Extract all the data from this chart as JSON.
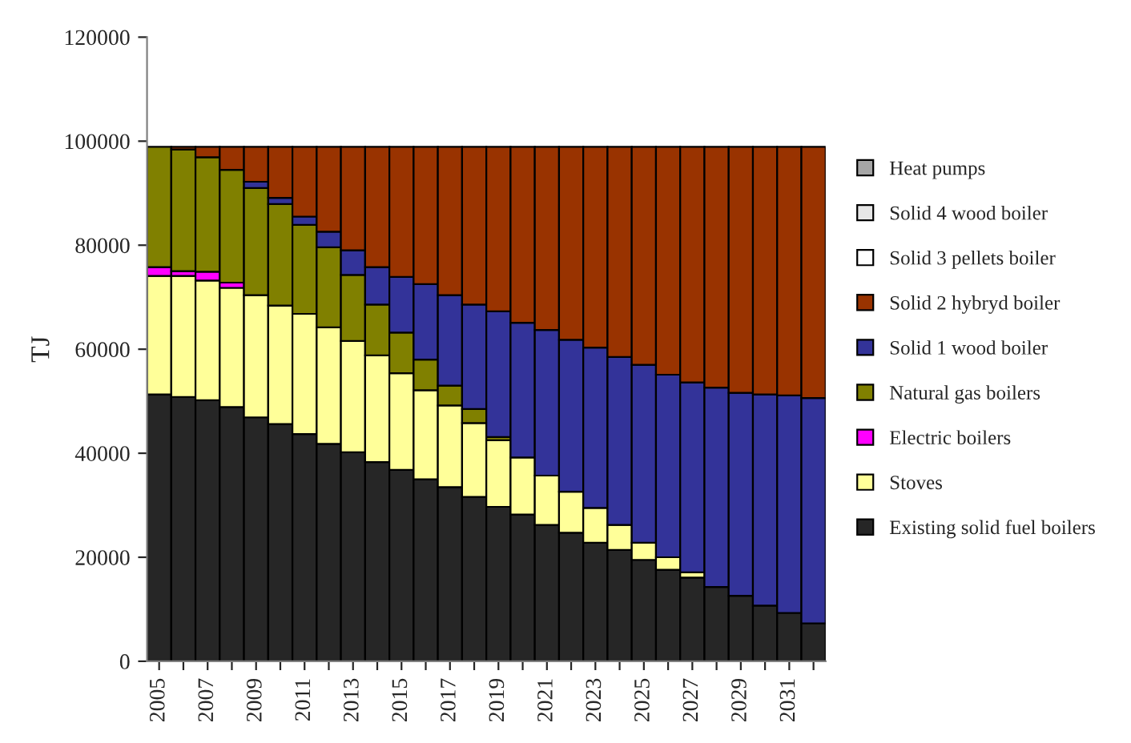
{
  "chart_data": {
    "type": "bar",
    "stacked": true,
    "ylabel": "TJ",
    "categories": [
      "2005",
      null,
      "2007",
      null,
      "2009",
      null,
      "2011",
      null,
      "2013",
      null,
      "2015",
      null,
      "2017",
      null,
      "2019",
      null,
      "2021",
      null,
      "2023",
      null,
      "2025",
      null,
      "2027",
      null,
      "2029",
      null,
      "2031",
      null
    ],
    "ylim": [
      0,
      120000
    ],
    "yticks": [
      0,
      20000,
      40000,
      60000,
      80000,
      100000,
      120000
    ],
    "grid": false,
    "legend": "right",
    "series": [
      {
        "name": "Existing solid fuel boilers",
        "color": "#262626",
        "values": [
          51300,
          50800,
          50200,
          48900,
          46900,
          45600,
          43700,
          41800,
          40200,
          38300,
          36800,
          35000,
          33500,
          31600,
          29700,
          28200,
          26200,
          24700,
          22800,
          21400,
          19500,
          17600,
          16100,
          14300,
          12600,
          10700,
          9300,
          7300
        ]
      },
      {
        "name": "Stoves",
        "color": "#ffff99",
        "values": [
          22800,
          23300,
          23000,
          22900,
          23500,
          22800,
          23100,
          22400,
          21400,
          20500,
          18600,
          17100,
          15700,
          14200,
          12800,
          11000,
          9500,
          7900,
          6700,
          4800,
          3300,
          2400,
          1000,
          0,
          0,
          0,
          0,
          0
        ]
      },
      {
        "name": "Electric boilers",
        "color": "#ff00ff",
        "values": [
          1700,
          900,
          1700,
          1000,
          0,
          0,
          0,
          0,
          0,
          0,
          0,
          0,
          0,
          0,
          0,
          0,
          0,
          0,
          0,
          0,
          0,
          0,
          0,
          0,
          0,
          0,
          0,
          0
        ]
      },
      {
        "name": "Natural gas boilers",
        "color": "#808000",
        "values": [
          23100,
          23400,
          22000,
          21700,
          20600,
          19500,
          17100,
          15400,
          12700,
          9800,
          7800,
          5900,
          3800,
          2700,
          600,
          0,
          0,
          0,
          0,
          0,
          0,
          0,
          0,
          0,
          0,
          0,
          0,
          0
        ]
      },
      {
        "name": "Solid 1 wood boiler",
        "color": "#333399",
        "values": [
          0,
          0,
          0,
          0,
          1200,
          1200,
          1600,
          3000,
          4700,
          7200,
          10700,
          14500,
          17400,
          20100,
          24200,
          25900,
          28000,
          29200,
          30800,
          32300,
          34200,
          35100,
          36500,
          38300,
          39000,
          40600,
          41800,
          43300
        ]
      },
      {
        "name": "Solid 2 hybryd boiler",
        "color": "#993300",
        "values": [
          0,
          500,
          2000,
          4400,
          6700,
          9800,
          13400,
          16300,
          19900,
          23100,
          25000,
          26400,
          28500,
          30300,
          31600,
          33800,
          35200,
          37100,
          38600,
          40400,
          41900,
          43800,
          45300,
          46300,
          47300,
          47600,
          47800,
          48300
        ]
      },
      {
        "name": "Solid 3 pellets boiler",
        "color": "#ffffff",
        "values": [
          0,
          0,
          0,
          0,
          0,
          0,
          0,
          0,
          0,
          0,
          0,
          0,
          0,
          0,
          0,
          0,
          0,
          0,
          0,
          0,
          0,
          0,
          0,
          0,
          0,
          0,
          0,
          0
        ]
      },
      {
        "name": "Solid 4 wood boiler",
        "color": "#e6e6e6",
        "values": [
          0,
          0,
          0,
          0,
          0,
          0,
          0,
          0,
          0,
          0,
          0,
          0,
          0,
          0,
          0,
          0,
          0,
          0,
          0,
          0,
          0,
          0,
          0,
          0,
          0,
          0,
          0,
          0
        ]
      },
      {
        "name": "Heat pumps",
        "color": "#a6a6a6",
        "values": [
          0,
          0,
          0,
          0,
          0,
          0,
          0,
          0,
          0,
          0,
          0,
          0,
          0,
          0,
          0,
          0,
          0,
          0,
          0,
          0,
          0,
          0,
          0,
          0,
          0,
          0,
          0,
          0
        ]
      }
    ]
  }
}
